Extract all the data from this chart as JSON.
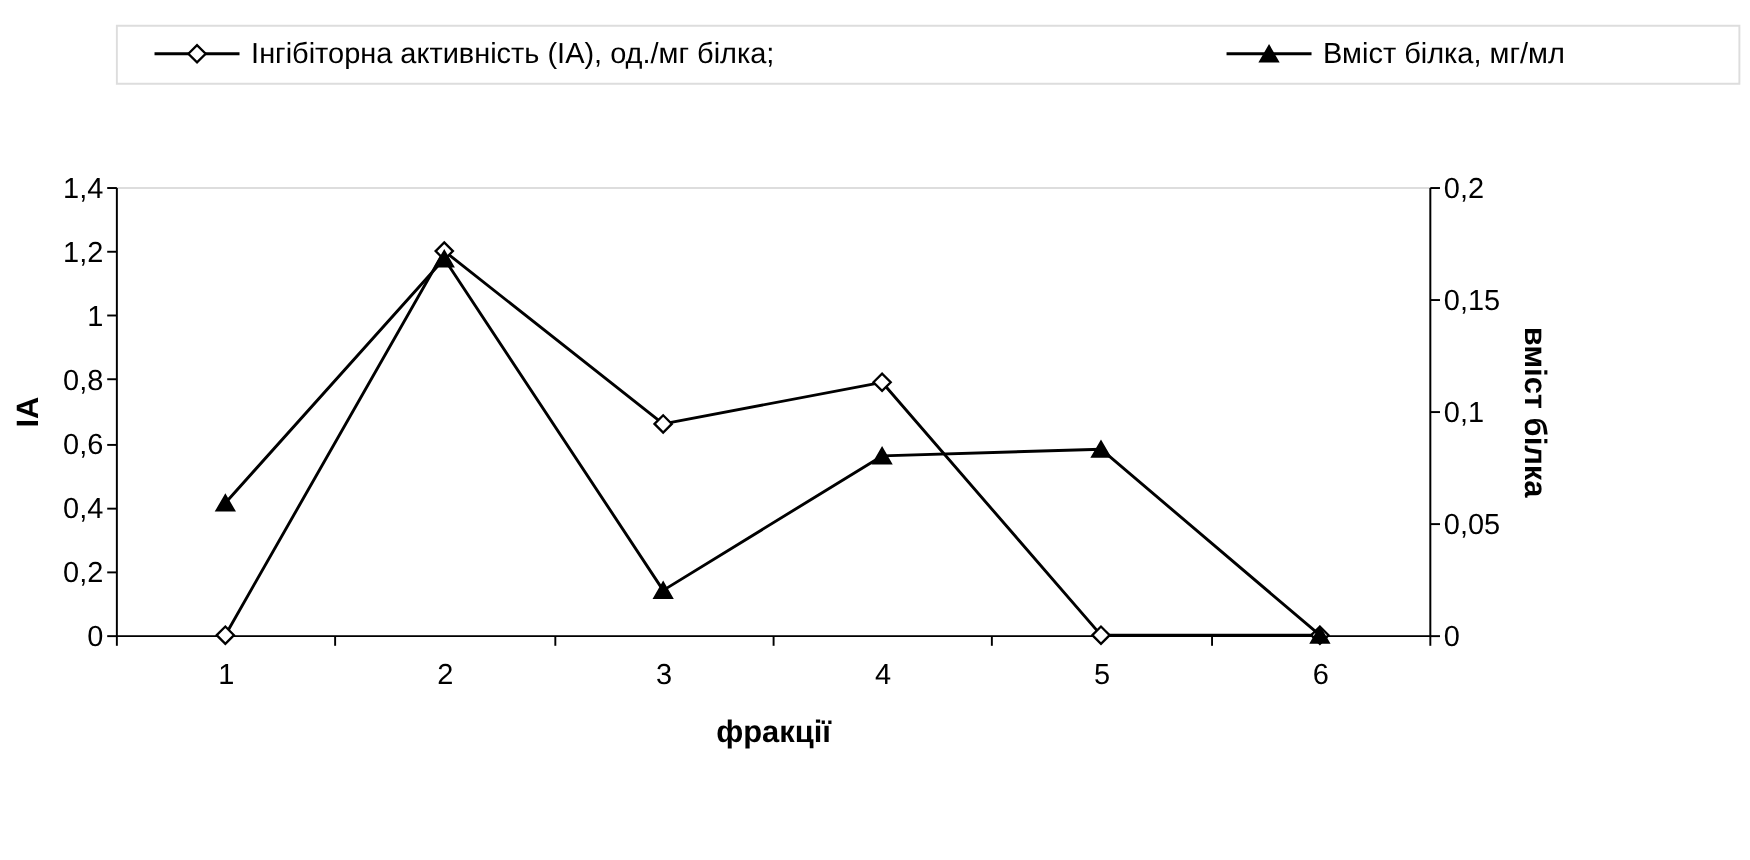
{
  "chart_data": {
    "type": "line",
    "xlabel": "фракції",
    "ylabel": "ІА",
    "y2label": "вміст білка",
    "categories": [
      "1",
      "2",
      "3",
      "4",
      "5",
      "6"
    ],
    "series": [
      {
        "name": "Інгібіторна активність (ІА), од./мг білка;",
        "color": "#000000",
        "marker": "diamond",
        "values": [
          0,
          1.2,
          0.66,
          0.79,
          0,
          0
        ]
      },
      {
        "name": "Вміст білка, мг/мл",
        "color": "#000000",
        "marker": "triangle",
        "axis": "y2",
        "values": [
          0.059,
          0.168,
          0.02,
          0.08,
          0.083,
          0
        ]
      }
    ],
    "ylim": [
      0,
      1.4
    ],
    "yticks": [
      0,
      {
        "value": 0.2,
        "label": "0,2"
      },
      {
        "value": 0.4,
        "label": "0,4"
      },
      {
        "value": 0.6,
        "label": "0,6"
      },
      {
        "value": 0.8,
        "label": "0,8"
      },
      1,
      {
        "value": 1.2,
        "label": "1,2"
      },
      {
        "value": 1.4,
        "label": "1,4"
      }
    ],
    "y2lim": [
      0,
      0.2
    ],
    "y2ticks": [
      0,
      {
        "value": 0.05,
        "label": "0,05"
      },
      {
        "value": 0.1,
        "label": "0,1"
      },
      {
        "value": 0.15,
        "label": "0,15"
      },
      {
        "value": 0.2,
        "label": "0,2"
      }
    ],
    "grid": false,
    "legend": "top",
    "line_style": "solid"
  }
}
